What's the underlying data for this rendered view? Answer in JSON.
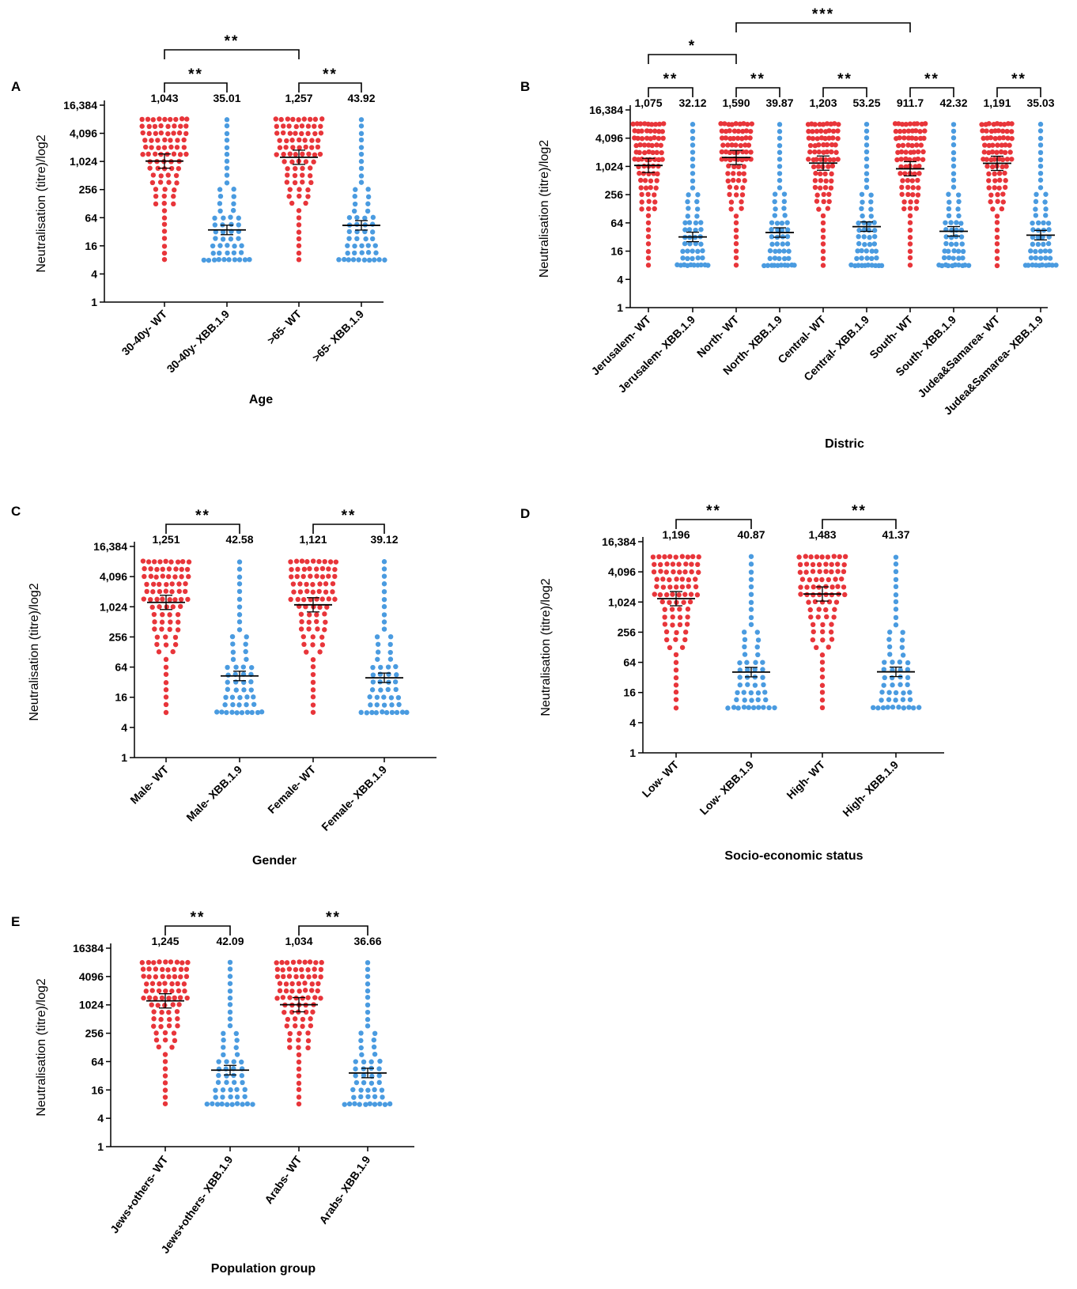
{
  "figure": {
    "type": "dot-plot-panels"
  },
  "colors": {
    "wt": "#e8353a",
    "xbb": "#4a9be0",
    "axis": "#000000"
  },
  "chart_data": [
    {
      "panel": "A",
      "type": "scatter",
      "ylabel": "Neutralisation (titre)/log2",
      "xlabel": "Age",
      "yticks": [
        "16,384",
        "4,096",
        "1,024",
        "256",
        "64",
        "16",
        "4",
        "1"
      ],
      "ylim_log2": [
        0,
        14
      ],
      "categories": [
        "30-40y- WT",
        "30-40y- XBB.1.9",
        ">65- WT",
        ">65- XBB.1.9"
      ],
      "gmt_labels": [
        "1,043",
        "35.01",
        "1,257",
        "43.92"
      ],
      "gmt_values": [
        1043,
        35.01,
        1257,
        43.92
      ],
      "sig_brackets": [
        {
          "from": 0,
          "to": 1,
          "label": "**",
          "level": 0
        },
        {
          "from": 2,
          "to": 3,
          "label": "**",
          "level": 0
        },
        {
          "from": 0,
          "to": 2,
          "label": "**",
          "level": 1
        }
      ]
    },
    {
      "panel": "B",
      "type": "scatter",
      "ylabel": "Neutralisation (titre)/log2",
      "xlabel": "Distric",
      "yticks": [
        "16,384",
        "4,096",
        "1,024",
        "256",
        "64",
        "16",
        "4",
        "1"
      ],
      "ylim_log2": [
        0,
        14
      ],
      "categories": [
        "Jerusalem- WT",
        "Jerusalem- XBB.1.9",
        "North- WT",
        "North- XBB.1.9",
        "Central- WT",
        "Central- XBB.1.9",
        "South- WT",
        "South- XBB.1.9",
        "Judea&Samarea- WT",
        "Judea&Samarea- XBB.1.9"
      ],
      "gmt_labels": [
        "1,075",
        "32.12",
        "1,590",
        "39.87",
        "1,203",
        "53.25",
        "911.7",
        "42.32",
        "1,191",
        "35.03"
      ],
      "gmt_values": [
        1075,
        32.12,
        1590,
        39.87,
        1203,
        53.25,
        911.7,
        42.32,
        1191,
        35.03
      ],
      "sig_brackets": [
        {
          "from": 0,
          "to": 1,
          "label": "**",
          "level": 0
        },
        {
          "from": 2,
          "to": 3,
          "label": "**",
          "level": 0
        },
        {
          "from": 4,
          "to": 5,
          "label": "**",
          "level": 0
        },
        {
          "from": 6,
          "to": 7,
          "label": "**",
          "level": 0
        },
        {
          "from": 8,
          "to": 9,
          "label": "**",
          "level": 0
        },
        {
          "from": 0,
          "to": 2,
          "label": "*",
          "level": 1
        },
        {
          "from": 2,
          "to": 6,
          "label": "***",
          "level": 2
        }
      ]
    },
    {
      "panel": "C",
      "type": "scatter",
      "ylabel": "Neutralisation (titre)/log2",
      "xlabel": "Gender",
      "yticks": [
        "16,384",
        "4,096",
        "1,024",
        "256",
        "64",
        "16",
        "4",
        "1"
      ],
      "ylim_log2": [
        0,
        14
      ],
      "categories": [
        "Male- WT",
        "Male- XBB.1.9",
        "Female- WT",
        "Female- XBB.1.9"
      ],
      "gmt_labels": [
        "1,251",
        "42.58",
        "1,121",
        "39.12"
      ],
      "gmt_values": [
        1251,
        42.58,
        1121,
        39.12
      ],
      "sig_brackets": [
        {
          "from": 0,
          "to": 1,
          "label": "**",
          "level": 0
        },
        {
          "from": 2,
          "to": 3,
          "label": "**",
          "level": 0
        }
      ]
    },
    {
      "panel": "D",
      "type": "scatter",
      "ylabel": "Neutralisation (titre)/log2",
      "xlabel": "Socio-economic status",
      "yticks": [
        "16,384",
        "4,096",
        "1,024",
        "256",
        "64",
        "16",
        "4",
        "1"
      ],
      "ylim_log2": [
        0,
        14
      ],
      "categories": [
        "Low- WT",
        "Low- XBB.1.9",
        "High- WT",
        "High- XBB.1.9"
      ],
      "gmt_labels": [
        "1,196",
        "40.87",
        "1,483",
        "41.37"
      ],
      "gmt_values": [
        1196,
        40.87,
        1483,
        41.37
      ],
      "sig_brackets": [
        {
          "from": 0,
          "to": 1,
          "label": "**",
          "level": 0
        },
        {
          "from": 2,
          "to": 3,
          "label": "**",
          "level": 0
        }
      ]
    },
    {
      "panel": "E",
      "type": "scatter",
      "ylabel": "Neutralisation (titre)/log2",
      "xlabel": "Population group",
      "yticks": [
        "16384",
        "4096",
        "1024",
        "256",
        "64",
        "16",
        "4",
        "1"
      ],
      "ylim_log2": [
        0,
        14
      ],
      "categories": [
        "Jews+others- WT",
        "Jews+others- XBB.1.9",
        "Arabs- WT",
        "Arabs- XBB.1.9"
      ],
      "gmt_labels": [
        "1,245",
        "42.09",
        "1,034",
        "36.66"
      ],
      "gmt_values": [
        1245,
        42.09,
        1034,
        36.66
      ],
      "sig_brackets": [
        {
          "from": 0,
          "to": 1,
          "label": "**",
          "level": 0
        },
        {
          "from": 2,
          "to": 3,
          "label": "**",
          "level": 0
        }
      ]
    }
  ]
}
